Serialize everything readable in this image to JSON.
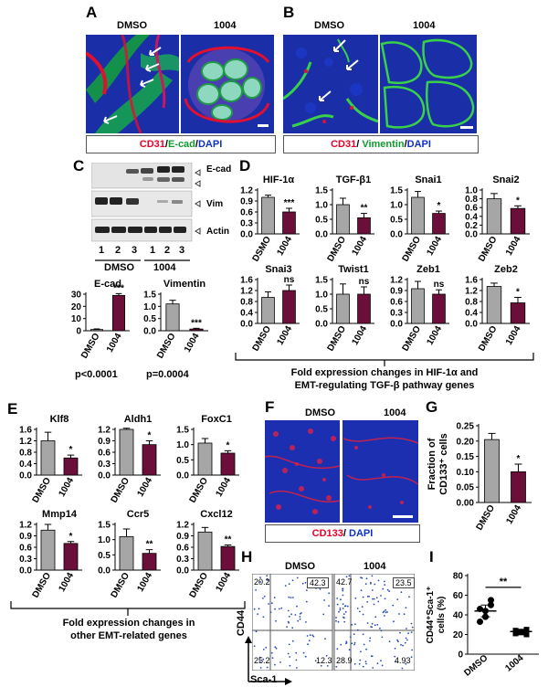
{
  "panels": {
    "A": {
      "label": "A",
      "left_title": "DMSO",
      "right_title": "1004",
      "legend": {
        "red": "CD31",
        "sep1": "/",
        "green": "E-cad",
        "sep2": "/",
        "blue": "DAPI"
      }
    },
    "B": {
      "label": "B",
      "left_title": "DMSO",
      "right_title": "1004",
      "legend": {
        "red": "CD31",
        "sep1": "/ ",
        "green": "Vimentin",
        "sep2": "/",
        "blue": "DAPI"
      }
    },
    "C": {
      "label": "C",
      "blot_labels": [
        "E-cad",
        "Vim",
        "Actin"
      ],
      "lane_numbers": [
        "1",
        "2",
        "3",
        "1",
        "2",
        "3"
      ],
      "groups": [
        "DMSO",
        "1004"
      ]
    },
    "D": {
      "label": "D",
      "caption_line1": "Fold expression changes in HIF-1α and",
      "caption_line2": "EMT-regulating TGF-β pathway genes"
    },
    "E": {
      "label": "E",
      "caption_line1": "Fold expression changes in",
      "caption_line2": "other EMT-related genes"
    },
    "F": {
      "label": "F",
      "left_title": "DMSO",
      "right_title": "1004",
      "legend": {
        "red": "CD133",
        "sep": "/ ",
        "blue": "DAPI"
      }
    },
    "G": {
      "label": "G"
    },
    "H": {
      "label": "H",
      "left_title": "DMSO",
      "right_title": "1004",
      "ylabel": "CD44",
      "xlabel": "Sca-1",
      "dmso_quadrants": {
        "ul": "20.2",
        "ur": "42.3",
        "ll": "25.2",
        "lr": "12.3"
      },
      "t1004_quadrants": {
        "ul": "42.7",
        "ur": "23.5",
        "ll": "28.9",
        "lr": "4.93"
      }
    },
    "I": {
      "label": "I"
    }
  },
  "colors": {
    "gray_bar": "#a6a6a6",
    "maroon_bar": "#6b0f3a",
    "red": "#e8002a",
    "green": "#119a2e",
    "blue": "#1030c8",
    "dot_blue": "#2a4bb5"
  },
  "chart_data": [
    {
      "id": "C-ecad",
      "type": "bar",
      "title": "E-cad",
      "categories": [
        "DMSO",
        "1004"
      ],
      "values": [
        1,
        29
      ],
      "errors": [
        0.5,
        1.5
      ],
      "sig": [
        "",
        "***"
      ],
      "ylim": [
        0,
        30
      ],
      "yticks": [
        0,
        10,
        20,
        30
      ],
      "footnote": "p<0.0001"
    },
    {
      "id": "C-vim",
      "type": "bar",
      "title": "Vimentin",
      "categories": [
        "DMSO",
        "1004"
      ],
      "values": [
        1.1,
        0.07
      ],
      "errors": [
        0.15,
        0.03
      ],
      "sig": [
        "",
        "***"
      ],
      "ylim": [
        0,
        1.5
      ],
      "yticks": [
        0.0,
        0.5,
        1.0,
        1.5
      ],
      "footnote": "p=0.0004"
    },
    {
      "id": "D-hif",
      "type": "bar",
      "title": "HIF-1α",
      "categories": [
        "DSMO",
        "1004"
      ],
      "values": [
        1.0,
        0.6
      ],
      "errors": [
        0.06,
        0.1
      ],
      "sig": [
        "",
        "***"
      ],
      "ylim": [
        0,
        1.2
      ],
      "yticks": [
        0.0,
        0.3,
        0.6,
        0.9,
        1.2
      ]
    },
    {
      "id": "D-tgf",
      "type": "bar",
      "title": "TGF-β1",
      "categories": [
        "DMSO",
        "1004"
      ],
      "values": [
        1.0,
        0.55
      ],
      "errors": [
        0.22,
        0.15
      ],
      "sig": [
        "",
        "**"
      ],
      "ylim": [
        0,
        1.5
      ],
      "yticks": [
        0.0,
        0.5,
        1.0,
        1.5
      ]
    },
    {
      "id": "D-snai1",
      "type": "bar",
      "title": "Snai1",
      "categories": [
        "DMSO",
        "1004"
      ],
      "values": [
        1.25,
        0.7
      ],
      "errors": [
        0.2,
        0.08
      ],
      "sig": [
        "",
        "*"
      ],
      "ylim": [
        0,
        1.5
      ],
      "yticks": [
        0.0,
        0.5,
        1.0,
        1.5
      ]
    },
    {
      "id": "D-snai2",
      "type": "bar",
      "title": "Snai2",
      "categories": [
        "DMSO",
        "1004"
      ],
      "values": [
        0.8,
        0.58
      ],
      "errors": [
        0.12,
        0.06
      ],
      "sig": [
        "",
        "*"
      ],
      "ylim": [
        0,
        1.0
      ],
      "yticks": [
        0.0,
        0.2,
        0.4,
        0.6,
        0.8,
        1.0
      ]
    },
    {
      "id": "D-snai3",
      "type": "bar",
      "title": "Snai3",
      "categories": [
        "DMSO",
        "1004"
      ],
      "values": [
        0.95,
        1.2
      ],
      "errors": [
        0.2,
        0.2
      ],
      "sig": [
        "",
        "ns"
      ],
      "ylim": [
        0,
        1.6
      ],
      "yticks": [
        0.0,
        0.4,
        0.8,
        1.2,
        1.6
      ]
    },
    {
      "id": "D-twist1",
      "type": "bar",
      "title": "Twist1",
      "categories": [
        "DMSO",
        "1004"
      ],
      "values": [
        1.0,
        1.0
      ],
      "errors": [
        0.35,
        0.25
      ],
      "sig": [
        "",
        "ns"
      ],
      "ylim": [
        0,
        1.5
      ],
      "yticks": [
        0.0,
        0.5,
        1.0,
        1.5
      ]
    },
    {
      "id": "D-zeb1",
      "type": "bar",
      "title": "Zeb1",
      "categories": [
        "DMSO",
        "1004"
      ],
      "values": [
        0.95,
        0.8
      ],
      "errors": [
        0.2,
        0.12
      ],
      "sig": [
        "",
        "ns"
      ],
      "ylim": [
        0,
        1.2
      ],
      "yticks": [
        0.0,
        0.3,
        0.6,
        0.9,
        1.2
      ]
    },
    {
      "id": "D-zeb2",
      "type": "bar",
      "title": "Zeb2",
      "categories": [
        "DMSO",
        "1004"
      ],
      "values": [
        1.35,
        0.75
      ],
      "errors": [
        0.12,
        0.2
      ],
      "sig": [
        "",
        "*"
      ],
      "ylim": [
        0,
        1.6
      ],
      "yticks": [
        0.0,
        0.4,
        0.8,
        1.2,
        1.6
      ]
    },
    {
      "id": "E-klf8",
      "type": "bar",
      "title": "Klf8",
      "categories": [
        "DMSO",
        "1004"
      ],
      "values": [
        1.2,
        0.6
      ],
      "errors": [
        0.3,
        0.1
      ],
      "sig": [
        "",
        "*"
      ],
      "ylim": [
        0,
        1.6
      ],
      "yticks": [
        0.0,
        0.4,
        0.8,
        1.2,
        1.6
      ]
    },
    {
      "id": "E-aldh1",
      "type": "bar",
      "title": "Aldh1",
      "categories": [
        "DMSO",
        "1004"
      ],
      "values": [
        1.2,
        0.8
      ],
      "errors": [
        0.03,
        0.1
      ],
      "sig": [
        "",
        "*"
      ],
      "ylim": [
        0,
        1.2
      ],
      "yticks": [
        0.0,
        0.3,
        0.6,
        0.9,
        1.2
      ]
    },
    {
      "id": "E-foxc1",
      "type": "bar",
      "title": "FoxC1",
      "categories": [
        "DMSO",
        "1004"
      ],
      "values": [
        1.05,
        0.72
      ],
      "errors": [
        0.15,
        0.08
      ],
      "sig": [
        "",
        "*"
      ],
      "ylim": [
        0,
        1.5
      ],
      "yticks": [
        0.0,
        0.5,
        1.0,
        1.5
      ]
    },
    {
      "id": "E-mmp14",
      "type": "bar",
      "title": "Mmp14",
      "categories": [
        "DMSO",
        "1004"
      ],
      "values": [
        1.05,
        0.7
      ],
      "errors": [
        0.15,
        0.05
      ],
      "sig": [
        "",
        "*"
      ],
      "ylim": [
        0,
        1.2
      ],
      "yticks": [
        0.0,
        0.3,
        0.6,
        0.9,
        1.2
      ]
    },
    {
      "id": "E-ccr5",
      "type": "bar",
      "title": "Ccr5",
      "categories": [
        "DMSO",
        "1004"
      ],
      "values": [
        1.1,
        0.55
      ],
      "errors": [
        0.25,
        0.12
      ],
      "sig": [
        "",
        "**"
      ],
      "ylim": [
        0,
        1.5
      ],
      "yticks": [
        0.0,
        0.5,
        1.0,
        1.5
      ]
    },
    {
      "id": "E-cxcl12",
      "type": "bar",
      "title": "Cxcl12",
      "categories": [
        "DMSO",
        "1004"
      ],
      "values": [
        1.0,
        0.62
      ],
      "errors": [
        0.12,
        0.04
      ],
      "sig": [
        "",
        "**"
      ],
      "ylim": [
        0,
        1.2
      ],
      "yticks": [
        0.0,
        0.3,
        0.6,
        0.9,
        1.2
      ]
    },
    {
      "id": "G",
      "type": "bar",
      "title": "",
      "categories": [
        "DMSO",
        "1004"
      ],
      "values": [
        0.205,
        0.1
      ],
      "errors": [
        0.02,
        0.025
      ],
      "sig": [
        "",
        "*"
      ],
      "ylim": [
        0,
        0.25
      ],
      "yticks": [
        0.0,
        0.05,
        0.1,
        0.15,
        0.2,
        0.25
      ],
      "ylabel_main": "Fraction of",
      "ylabel_sub": "CD133⁺ cells"
    },
    {
      "id": "I",
      "type": "scatter",
      "title": "",
      "categories": [
        "DMSO",
        "1004"
      ],
      "points": [
        [
          46,
          38,
          50,
          33,
          44,
          55
        ],
        [
          24,
          22,
          25,
          21,
          23,
          20
        ]
      ],
      "means": [
        44,
        23
      ],
      "errors": [
        6,
        1.5
      ],
      "sig": "**",
      "ylim": [
        0,
        80
      ],
      "yticks": [
        0,
        20,
        40,
        60,
        80
      ],
      "ylabel_main": "CD44⁺Sca-1⁺",
      "ylabel_sub": "cells (%)"
    }
  ]
}
